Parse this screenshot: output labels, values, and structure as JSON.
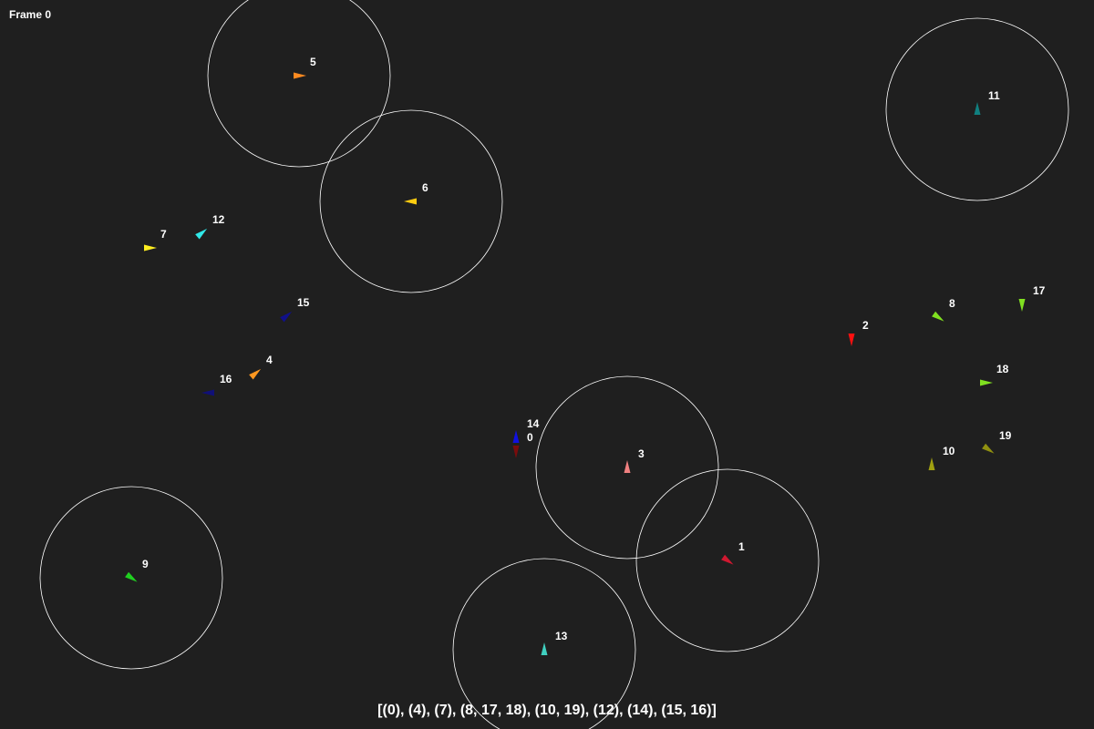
{
  "frame": {
    "label": "Frame 0"
  },
  "groups": {
    "text": "[(0), (4), (7), (8, 17, 18), (10, 19), (12), (14), (15, 16)]"
  },
  "agents": [
    {
      "id": "0",
      "color": "#7a0c0c",
      "heading": "down",
      "has_radius": false
    },
    {
      "id": "1",
      "color": "#d01830",
      "heading": "down-right",
      "has_radius": true
    },
    {
      "id": "2",
      "color": "#ff1010",
      "heading": "down",
      "has_radius": false
    },
    {
      "id": "3",
      "color": "#f08080",
      "heading": "up",
      "has_radius": true
    },
    {
      "id": "4",
      "color": "#ff9820",
      "heading": "up-right",
      "has_radius": false
    },
    {
      "id": "5",
      "color": "#ff8a20",
      "heading": "right",
      "has_radius": true
    },
    {
      "id": "6",
      "color": "#ffcc10",
      "heading": "left",
      "has_radius": true
    },
    {
      "id": "7",
      "color": "#ffee20",
      "heading": "right",
      "has_radius": false
    },
    {
      "id": "8",
      "color": "#80e020",
      "heading": "down-right",
      "has_radius": false
    },
    {
      "id": "9",
      "color": "#20d020",
      "heading": "down-right",
      "has_radius": true
    },
    {
      "id": "10",
      "color": "#a0a010",
      "heading": "up",
      "has_radius": false
    },
    {
      "id": "11",
      "color": "#108080",
      "heading": "up",
      "has_radius": true
    },
    {
      "id": "12",
      "color": "#30e8e8",
      "heading": "up-right",
      "has_radius": false
    },
    {
      "id": "13",
      "color": "#40d0c0",
      "heading": "up",
      "has_radius": true
    },
    {
      "id": "14",
      "color": "#1010e0",
      "heading": "up",
      "has_radius": false
    },
    {
      "id": "15",
      "color": "#10108a",
      "heading": "up-right",
      "has_radius": false
    },
    {
      "id": "16",
      "color": "#101078",
      "heading": "left",
      "has_radius": false
    },
    {
      "id": "17",
      "color": "#80e020",
      "heading": "down",
      "has_radius": false
    },
    {
      "id": "18",
      "color": "#80e020",
      "heading": "right",
      "has_radius": false
    },
    {
      "id": "19",
      "color": "#909010",
      "heading": "down-right",
      "has_radius": false
    }
  ]
}
